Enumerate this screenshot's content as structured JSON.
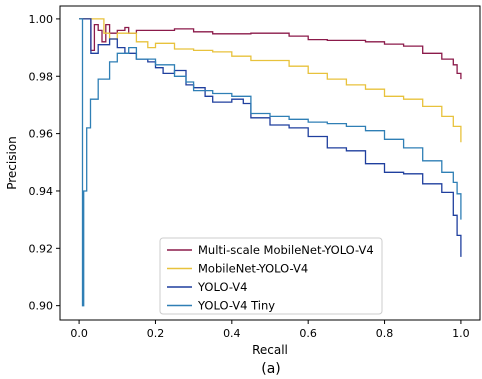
{
  "chart_data": {
    "type": "line",
    "caption": "(a)",
    "xlabel": "Recall",
    "ylabel": "Precision",
    "xlim": [
      -0.05,
      1.05
    ],
    "ylim": [
      0.895,
      1.0045
    ],
    "xticks": [
      0.0,
      0.2,
      0.4,
      0.6,
      0.8,
      1.0
    ],
    "xtick_labels": [
      "0.0",
      "0.2",
      "0.4",
      "0.6",
      "0.8",
      "1.0"
    ],
    "yticks": [
      0.9,
      0.92,
      0.94,
      0.96,
      0.98,
      1.0
    ],
    "ytick_labels": [
      "0.90",
      "0.92",
      "0.94",
      "0.96",
      "0.98",
      "1.00"
    ],
    "grid": false,
    "legend_position": "lower-center",
    "series": [
      {
        "name": "Multi-scale MobileNet-YOLO-V4",
        "color": "#8b1a4a",
        "points": [
          [
            0.0,
            1.0
          ],
          [
            0.03,
            1.0
          ],
          [
            0.031,
            0.989
          ],
          [
            0.04,
            0.998
          ],
          [
            0.05,
            0.996
          ],
          [
            0.06,
            0.992
          ],
          [
            0.07,
            0.998
          ],
          [
            0.08,
            0.995
          ],
          [
            0.1,
            0.996
          ],
          [
            0.12,
            0.997
          ],
          [
            0.13,
            0.995
          ],
          [
            0.15,
            0.996
          ],
          [
            0.2,
            0.996
          ],
          [
            0.25,
            0.9965
          ],
          [
            0.3,
            0.9955
          ],
          [
            0.35,
            0.9948
          ],
          [
            0.4,
            0.9948
          ],
          [
            0.45,
            0.995
          ],
          [
            0.5,
            0.995
          ],
          [
            0.55,
            0.994
          ],
          [
            0.6,
            0.9928
          ],
          [
            0.65,
            0.9925
          ],
          [
            0.7,
            0.9925
          ],
          [
            0.75,
            0.992
          ],
          [
            0.8,
            0.9912
          ],
          [
            0.85,
            0.9905
          ],
          [
            0.9,
            0.988
          ],
          [
            0.95,
            0.986
          ],
          [
            0.98,
            0.984
          ],
          [
            0.99,
            0.981
          ],
          [
            1.0,
            0.979
          ]
        ]
      },
      {
        "name": "MobileNet-YOLO-V4",
        "color": "#e8c23c",
        "points": [
          [
            0.0,
            1.0
          ],
          [
            0.06,
            1.0
          ],
          [
            0.065,
            0.995
          ],
          [
            0.08,
            0.993
          ],
          [
            0.1,
            0.995
          ],
          [
            0.12,
            0.995
          ],
          [
            0.15,
            0.992
          ],
          [
            0.18,
            0.99
          ],
          [
            0.2,
            0.9915
          ],
          [
            0.25,
            0.9895
          ],
          [
            0.3,
            0.989
          ],
          [
            0.35,
            0.9885
          ],
          [
            0.4,
            0.987
          ],
          [
            0.45,
            0.9855
          ],
          [
            0.5,
            0.9855
          ],
          [
            0.55,
            0.9835
          ],
          [
            0.6,
            0.981
          ],
          [
            0.65,
            0.979
          ],
          [
            0.7,
            0.977
          ],
          [
            0.75,
            0.9755
          ],
          [
            0.8,
            0.973
          ],
          [
            0.85,
            0.972
          ],
          [
            0.9,
            0.9695
          ],
          [
            0.95,
            0.966
          ],
          [
            0.98,
            0.9625
          ],
          [
            1.0,
            0.957
          ]
        ]
      },
      {
        "name": "YOLO-V4",
        "color": "#1f3f9e",
        "points": [
          [
            0.0,
            1.0
          ],
          [
            0.03,
            1.0
          ],
          [
            0.031,
            0.988
          ],
          [
            0.05,
            0.991
          ],
          [
            0.08,
            0.993
          ],
          [
            0.1,
            0.99
          ],
          [
            0.12,
            0.988
          ],
          [
            0.15,
            0.986
          ],
          [
            0.18,
            0.985
          ],
          [
            0.2,
            0.983
          ],
          [
            0.22,
            0.981
          ],
          [
            0.25,
            0.982
          ],
          [
            0.28,
            0.977
          ],
          [
            0.3,
            0.976
          ],
          [
            0.33,
            0.973
          ],
          [
            0.35,
            0.971
          ],
          [
            0.4,
            0.972
          ],
          [
            0.43,
            0.9705
          ],
          [
            0.45,
            0.9655
          ],
          [
            0.5,
            0.963
          ],
          [
            0.55,
            0.962
          ],
          [
            0.6,
            0.959
          ],
          [
            0.65,
            0.955
          ],
          [
            0.7,
            0.954
          ],
          [
            0.75,
            0.9495
          ],
          [
            0.8,
            0.9465
          ],
          [
            0.85,
            0.946
          ],
          [
            0.9,
            0.9425
          ],
          [
            0.95,
            0.9395
          ],
          [
            0.98,
            0.9315
          ],
          [
            0.99,
            0.9245
          ],
          [
            1.0,
            0.917
          ]
        ]
      },
      {
        "name": "YOLO-V4 Tiny",
        "color": "#2f7fb5",
        "points": [
          [
            0.0,
            1.0
          ],
          [
            0.008,
            1.0
          ],
          [
            0.009,
            0.9
          ],
          [
            0.012,
            0.94
          ],
          [
            0.02,
            0.962
          ],
          [
            0.03,
            0.972
          ],
          [
            0.05,
            0.979
          ],
          [
            0.08,
            0.985
          ],
          [
            0.1,
            0.988
          ],
          [
            0.13,
            0.99
          ],
          [
            0.15,
            0.986
          ],
          [
            0.2,
            0.984
          ],
          [
            0.25,
            0.98
          ],
          [
            0.28,
            0.978
          ],
          [
            0.3,
            0.975
          ],
          [
            0.35,
            0.974
          ],
          [
            0.4,
            0.973
          ],
          [
            0.45,
            0.967
          ],
          [
            0.5,
            0.966
          ],
          [
            0.55,
            0.965
          ],
          [
            0.6,
            0.964
          ],
          [
            0.65,
            0.9635
          ],
          [
            0.7,
            0.9625
          ],
          [
            0.75,
            0.961
          ],
          [
            0.8,
            0.958
          ],
          [
            0.85,
            0.955
          ],
          [
            0.9,
            0.9505
          ],
          [
            0.95,
            0.9465
          ],
          [
            0.98,
            0.943
          ],
          [
            0.99,
            0.939
          ],
          [
            1.0,
            0.93
          ]
        ]
      }
    ]
  }
}
